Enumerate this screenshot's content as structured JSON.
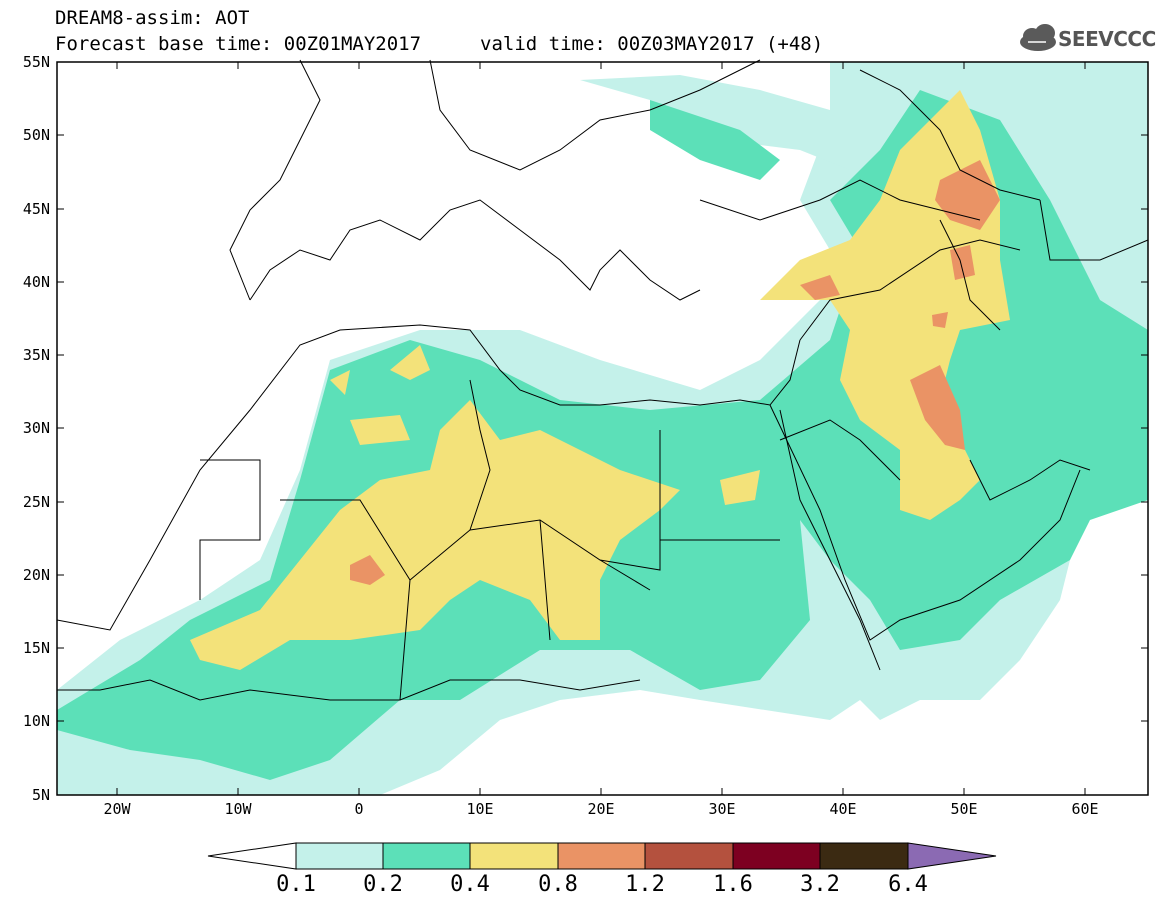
{
  "header": {
    "line1": "DREAM8-assim: AOT",
    "line2": "Forecast base time: 00Z01MAY2017",
    "valid": "valid time: 00Z03MAY2017 (+48)",
    "logo_text": "SEEVCCC"
  },
  "axes": {
    "lat_labels": [
      "55N",
      "50N",
      "45N",
      "40N",
      "35N",
      "30N",
      "25N",
      "20N",
      "15N",
      "10N",
      "5N"
    ],
    "lon_labels": [
      "20W",
      "10W",
      "0",
      "10E",
      "20E",
      "30E",
      "40E",
      "50E",
      "60E"
    ]
  },
  "colorbar": {
    "labels": [
      "0.1",
      "0.2",
      "0.4",
      "0.8",
      "1.2",
      "1.6",
      "3.2",
      "6.4"
    ],
    "colors": [
      "#c4f1ea",
      "#5ce0b8",
      "#f3e27a",
      "#ea9365",
      "#b4513e",
      "#7d0021",
      "#3b2a12",
      "#8b6ab3"
    ]
  },
  "legend_variable": "AOT"
}
